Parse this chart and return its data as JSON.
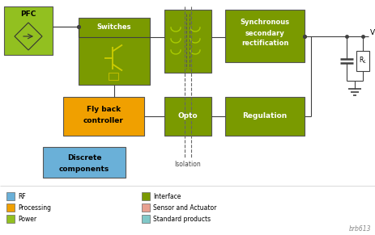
{
  "fig_width": 4.64,
  "fig_height": 2.91,
  "dpi": 100,
  "bg_color": "#ffffff",
  "colors": {
    "green_power": "#92c020",
    "green_interface": "#7a9a00",
    "orange_processing": "#f0a000",
    "blue_rf": "#6ab0d8",
    "cyan_standard": "#80c8c8",
    "salmon_sensor": "#e8a090",
    "line_color": "#404040"
  },
  "legend": [
    {
      "label": "RF",
      "color": "#6ab0d8"
    },
    {
      "label": "Processing",
      "color": "#f0a000"
    },
    {
      "label": "Power",
      "color": "#92c020"
    },
    {
      "label": "Interface",
      "color": "#7a9a00"
    },
    {
      "label": "Sensor and Actuator",
      "color": "#e8a090"
    },
    {
      "label": "Standard products",
      "color": "#80c8c8"
    }
  ],
  "watermark": "brb613"
}
